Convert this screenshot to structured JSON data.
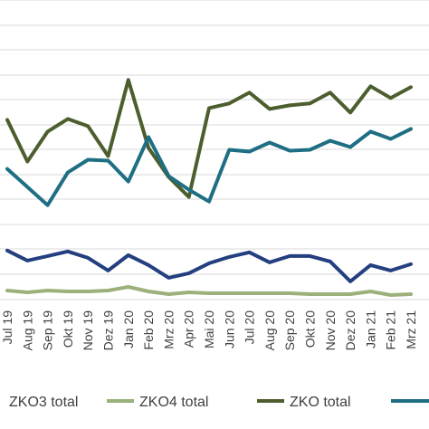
{
  "chart_data": {
    "type": "line",
    "categories": [
      "Jul 19",
      "Aug 19",
      "Sep 19",
      "Okt 19",
      "Nov 19",
      "Dez 19",
      "Jan 20",
      "Feb 20",
      "Mrz 20",
      "Apr 20",
      "Mai 20",
      "Jun 20",
      "Jul 20",
      "Aug 20",
      "Sep 20",
      "Okt 20",
      "Nov 20",
      "Dez 20",
      "Jan 21",
      "Feb 21",
      "Mrz 21"
    ],
    "ylim": [
      0,
      330
    ],
    "grid": true,
    "legend_position": "bottom",
    "series": [
      {
        "name": "ZKO4 total",
        "color": "#9bb07a",
        "values": [
          10,
          8,
          10,
          9,
          9,
          10,
          14,
          9,
          6,
          8,
          7,
          7,
          7,
          7,
          7,
          6,
          6,
          6,
          9,
          5,
          6
        ]
      },
      {
        "name": "ZKO total",
        "color": "#4d5e2e",
        "values": [
          198,
          152,
          185,
          199,
          191,
          158,
          242,
          167,
          135,
          113,
          211,
          216,
          228,
          210,
          214,
          216,
          228,
          206,
          235,
          222,
          234
        ]
      },
      {
        "name": "ZKO3 total",
        "color": "#243f7f",
        "values": [
          54,
          43,
          48,
          53,
          46,
          32,
          49,
          38,
          24,
          29,
          40,
          47,
          52,
          41,
          48,
          48,
          42,
          20,
          38,
          32,
          39
        ]
      },
      {
        "name": "",
        "color": "#1e6e84",
        "values": [
          144,
          124,
          104,
          140,
          154,
          153,
          130,
          179,
          136,
          121,
          108,
          165,
          163,
          173,
          164,
          165,
          175,
          168,
          185,
          177,
          188
        ]
      }
    ]
  },
  "legend": {
    "zko3_label": "ZKO3 total",
    "zko4_label": "ZKO4 total",
    "zko_label": "ZKO total"
  },
  "colors": {
    "grid": "#d9d9d9",
    "text": "#404040"
  }
}
